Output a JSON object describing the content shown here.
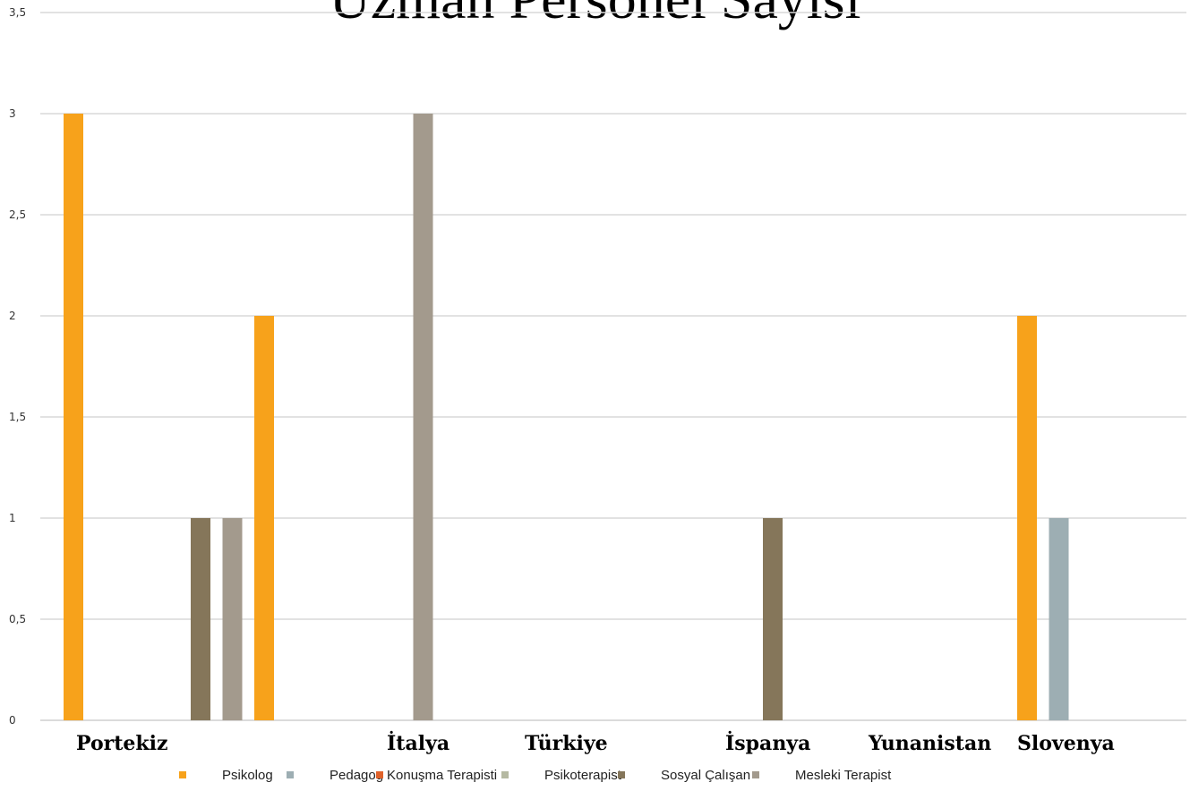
{
  "chart_data": {
    "type": "bar",
    "title": "Uzman Personel Sayısı",
    "categories": [
      "Portekiz",
      "İtalya",
      "Türkiye",
      "İspanya",
      "Yunanistan",
      "Slovenya"
    ],
    "series": [
      {
        "name": "Psikolog",
        "color": "#F7A21B",
        "values": [
          3,
          2,
          0,
          0,
          0,
          2
        ]
      },
      {
        "name": "Pedagog",
        "color": "#9DAEB3",
        "values": [
          0,
          0,
          0,
          0,
          0,
          1
        ]
      },
      {
        "name": "Konuşma Terapisti",
        "color": "#E0622A",
        "values": [
          0,
          0,
          0,
          0,
          0,
          0
        ]
      },
      {
        "name": "Psikoterapist",
        "color": "#B5B9A2",
        "values": [
          0,
          0,
          0,
          0,
          0,
          0
        ]
      },
      {
        "name": "Sosyal Çalışan",
        "color": "#85765A",
        "values": [
          1,
          0,
          0,
          1,
          0,
          0
        ]
      },
      {
        "name": "Mesleki Terapist",
        "color": "#A39A8D",
        "values": [
          1,
          3,
          0,
          0,
          0,
          0
        ]
      }
    ],
    "yticks": [
      "0",
      "0,5",
      "1",
      "1,5",
      "2",
      "2,5",
      "3",
      "3,5"
    ],
    "ylim": [
      0,
      3.5
    ],
    "grid": true,
    "legend_position": "bottom"
  }
}
